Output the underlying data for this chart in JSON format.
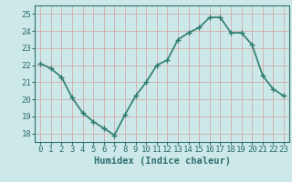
{
  "x": [
    0,
    1,
    2,
    3,
    4,
    5,
    6,
    7,
    8,
    9,
    10,
    11,
    12,
    13,
    14,
    15,
    16,
    17,
    18,
    19,
    20,
    21,
    22,
    23
  ],
  "y": [
    22.1,
    21.8,
    21.3,
    20.1,
    19.2,
    18.7,
    18.3,
    17.9,
    19.1,
    20.2,
    21.0,
    22.0,
    22.3,
    23.5,
    23.9,
    24.2,
    24.8,
    24.8,
    23.9,
    23.9,
    23.2,
    21.4,
    20.6,
    20.2
  ],
  "line_color": "#2e7d6e",
  "marker": "+",
  "marker_size": 4,
  "marker_linewidth": 1.0,
  "bg_color": "#cce8e8",
  "grid_color_major": "#b0cccc",
  "grid_color_minor": "#c8e0e0",
  "xlabel": "Humidex (Indice chaleur)",
  "ylim": [
    17.5,
    25.5
  ],
  "xlim": [
    -0.5,
    23.5
  ],
  "yticks": [
    18,
    19,
    20,
    21,
    22,
    23,
    24,
    25
  ],
  "xtick_labels": [
    "0",
    "1",
    "2",
    "3",
    "4",
    "5",
    "6",
    "7",
    "8",
    "9",
    "10",
    "11",
    "12",
    "13",
    "14",
    "15",
    "16",
    "17",
    "18",
    "19",
    "20",
    "21",
    "22",
    "23"
  ],
  "font_color": "#2e6e6e",
  "tick_fontsize": 6.5,
  "label_fontsize": 7.5,
  "linewidth": 1.2
}
